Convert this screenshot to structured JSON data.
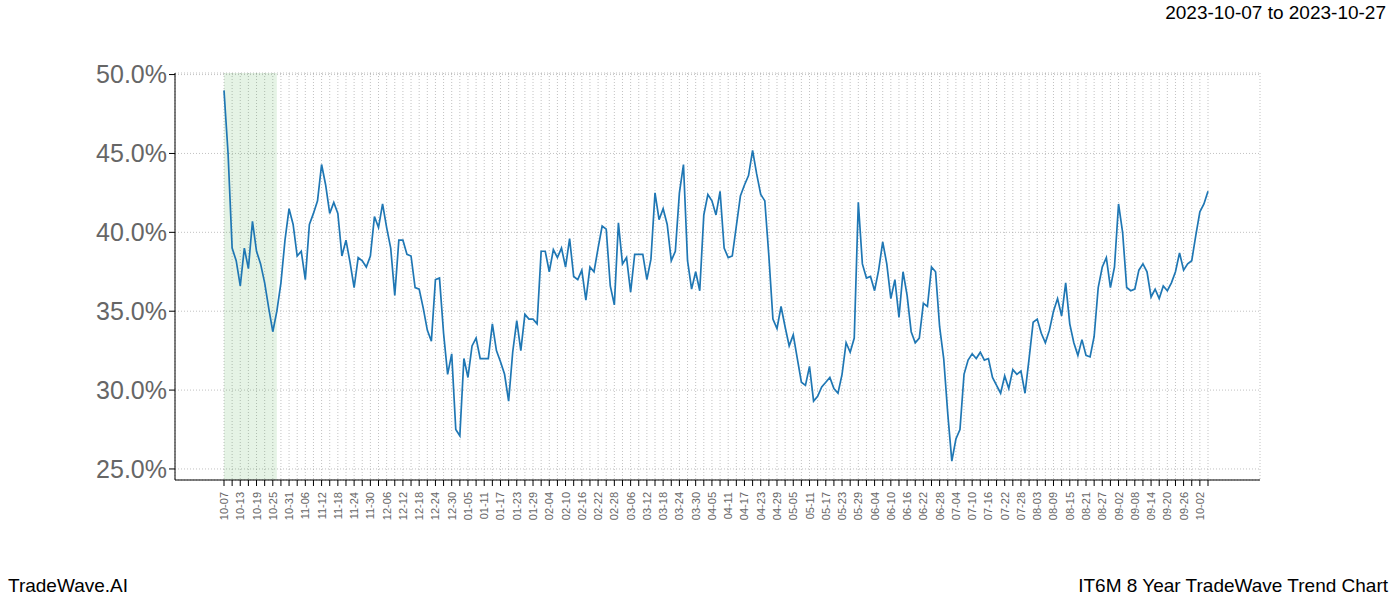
{
  "chart_data": {
    "type": "line",
    "title": "2023-10-07 to 2023-10-27",
    "annotations": [
      "TradeWave.AI",
      "IT6M 8 Year TradeWave Trend Chart"
    ],
    "categories": [
      "10-07",
      null,
      null,
      null,
      "10-13",
      null,
      null,
      null,
      "10-19",
      null,
      null,
      null,
      "10-25",
      null,
      null,
      null,
      "10-31",
      null,
      null,
      null,
      "11-06",
      null,
      null,
      null,
      "11-12",
      null,
      null,
      null,
      "11-18",
      null,
      null,
      null,
      "11-24",
      null,
      null,
      null,
      "11-30",
      null,
      null,
      null,
      "12-06",
      null,
      null,
      null,
      "12-12",
      null,
      null,
      null,
      "12-18",
      null,
      null,
      null,
      "12-24",
      null,
      null,
      null,
      "12-30",
      null,
      null,
      null,
      "01-05",
      null,
      null,
      null,
      "01-11",
      null,
      null,
      null,
      "01-17",
      null,
      null,
      null,
      "01-23",
      null,
      null,
      null,
      "01-29",
      null,
      null,
      null,
      "02-04",
      null,
      null,
      null,
      "02-10",
      null,
      null,
      null,
      "02-16",
      null,
      null,
      null,
      "02-22",
      null,
      null,
      null,
      "02-28",
      null,
      null,
      null,
      "03-06",
      null,
      null,
      null,
      "03-12",
      null,
      null,
      null,
      "03-18",
      null,
      null,
      null,
      "03-24",
      null,
      null,
      null,
      "03-30",
      null,
      null,
      null,
      "04-05",
      null,
      null,
      null,
      "04-11",
      null,
      null,
      null,
      "04-17",
      null,
      null,
      null,
      "04-23",
      null,
      null,
      null,
      "04-29",
      null,
      null,
      null,
      "05-05",
      null,
      null,
      null,
      "05-11",
      null,
      null,
      null,
      "05-17",
      null,
      null,
      null,
      "05-23",
      null,
      null,
      null,
      "05-29",
      null,
      null,
      null,
      "06-04",
      null,
      null,
      null,
      "06-10",
      null,
      null,
      null,
      "06-16",
      null,
      null,
      null,
      "06-22",
      null,
      null,
      null,
      "06-28",
      null,
      null,
      null,
      "07-04",
      null,
      null,
      null,
      "07-10",
      null,
      null,
      null,
      "07-16",
      null,
      null,
      null,
      "07-22",
      null,
      null,
      null,
      "07-28",
      null,
      null,
      null,
      "08-03",
      null,
      null,
      null,
      "08-09",
      null,
      null,
      null,
      "08-15",
      null,
      null,
      null,
      "08-21",
      null,
      null,
      null,
      "08-27",
      null,
      null,
      null,
      "09-02",
      null,
      null,
      null,
      "09-08",
      null,
      null,
      null,
      "09-14",
      null,
      null,
      null,
      "09-20",
      null,
      null,
      null,
      "09-26",
      null,
      null,
      null,
      "10-02",
      null,
      null
    ],
    "values": [
      49.0,
      45.0,
      39.0,
      38.2,
      36.6,
      39.0,
      37.7,
      40.7,
      38.8,
      38.0,
      36.8,
      35.2,
      33.7,
      35.0,
      36.8,
      39.5,
      41.5,
      40.5,
      38.5,
      38.8,
      37.0,
      40.5,
      41.2,
      42.0,
      44.3,
      43.0,
      41.2,
      41.9,
      41.2,
      38.5,
      39.5,
      38.1,
      36.5,
      38.4,
      38.2,
      37.8,
      38.5,
      41.0,
      40.3,
      41.8,
      40.3,
      39.0,
      36.0,
      39.5,
      39.5,
      38.6,
      38.5,
      36.5,
      36.4,
      35.2,
      33.8,
      33.1,
      37.0,
      37.1,
      33.6,
      31.0,
      32.3,
      27.5,
      27.1,
      32.0,
      30.8,
      32.8,
      33.3,
      32.0,
      32.0,
      32.0,
      34.2,
      32.5,
      31.8,
      31.0,
      29.3,
      32.4,
      34.4,
      32.5,
      34.8,
      34.5,
      34.5,
      34.2,
      38.8,
      38.8,
      37.5,
      38.9,
      38.4,
      39.0,
      37.8,
      39.6,
      37.2,
      37.0,
      37.6,
      35.7,
      37.8,
      37.5,
      39.0,
      40.4,
      40.2,
      36.6,
      35.4,
      40.6,
      38.0,
      38.4,
      36.2,
      38.6,
      38.6,
      38.6,
      37.0,
      38.3,
      42.5,
      40.8,
      41.5,
      40.5,
      38.2,
      38.8,
      42.5,
      44.3,
      38.2,
      36.4,
      37.5,
      36.3,
      41.1,
      42.4,
      42.0,
      41.1,
      42.6,
      39.0,
      38.4,
      38.5,
      40.4,
      42.3,
      43.0,
      43.6,
      45.2,
      43.7,
      42.4,
      42.0,
      38.5,
      34.5,
      33.9,
      35.3,
      34.0,
      32.8,
      33.5,
      32.0,
      30.5,
      30.3,
      31.5,
      29.3,
      29.6,
      30.2,
      30.5,
      30.8,
      30.1,
      29.8,
      31.0,
      33.0,
      32.4,
      33.3,
      41.9,
      38.0,
      37.1,
      37.2,
      36.3,
      37.6,
      39.4,
      38.0,
      35.8,
      37.0,
      34.6,
      37.5,
      36.0,
      33.7,
      33.0,
      33.3,
      35.5,
      35.3,
      37.8,
      37.5,
      34.0,
      32.0,
      28.5,
      25.5,
      26.9,
      27.5,
      31.0,
      31.9,
      32.3,
      32.0,
      32.4,
      31.9,
      32.0,
      30.8,
      30.3,
      29.8,
      30.9,
      30.1,
      31.3,
      31.0,
      31.2,
      29.8,
      32.0,
      34.3,
      34.5,
      33.6,
      33.0,
      33.8,
      35.0,
      35.8,
      34.7,
      36.8,
      34.2,
      33.0,
      32.2,
      33.2,
      32.2,
      32.1,
      33.4,
      36.5,
      37.8,
      38.4,
      36.5,
      37.8,
      41.8,
      40.0,
      36.5,
      36.3,
      36.4,
      37.6,
      38.0,
      37.5,
      35.9,
      36.4,
      35.8,
      36.6,
      36.3,
      36.8,
      37.5,
      38.7,
      37.6,
      38.0,
      38.2,
      39.8,
      41.3,
      41.8,
      42.6
    ],
    "color": "#1f77b4",
    "ylim": [
      24.3,
      50.1
    ],
    "yticks": [
      {
        "value": 25,
        "label": "25.0%"
      },
      {
        "value": 30,
        "label": "30.0%"
      },
      {
        "value": 35,
        "label": "35.0%"
      },
      {
        "value": 40,
        "label": "40.0%"
      },
      {
        "value": 45,
        "label": "45.0%"
      },
      {
        "value": 50,
        "label": "50.0%"
      }
    ],
    "highlight": [
      0,
      13
    ],
    "grid": true
  }
}
